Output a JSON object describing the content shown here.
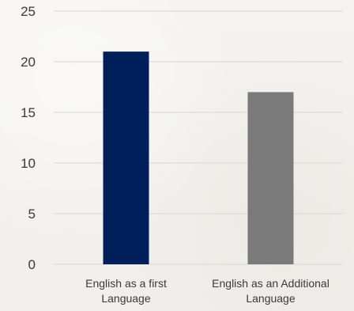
{
  "chart_data": {
    "type": "bar",
    "categories": [
      [
        "English as a first",
        "Language"
      ],
      [
        "English as an Additional",
        "Language"
      ]
    ],
    "values": [
      21,
      17
    ],
    "colors": [
      "#001f5b",
      "#7a7a7a"
    ],
    "gridline_color": "#d9d6d2",
    "ylim": [
      0,
      25
    ],
    "yticks": [
      0,
      5,
      10,
      15,
      20,
      25
    ],
    "ytick_labels": [
      "0",
      "5",
      "10",
      "15",
      "20",
      "25"
    ],
    "grid": true,
    "legend": false
  }
}
